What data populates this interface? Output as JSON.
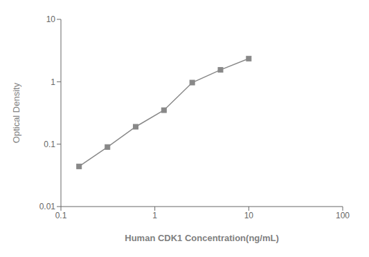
{
  "chart_data": {
    "type": "line",
    "x": [
      0.156,
      0.313,
      0.625,
      1.25,
      2.5,
      5.0,
      10.0
    ],
    "values": [
      0.044,
      0.09,
      0.19,
      0.35,
      0.97,
      1.55,
      2.35
    ],
    "xlabel": "Human CDK1 Concentration(ng/mL)",
    "ylabel": "Optical Density",
    "xlim": [
      0.1,
      100
    ],
    "ylim": [
      0.01,
      10
    ],
    "xticks": [
      0.1,
      1,
      10,
      100
    ],
    "yticks": [
      0.01,
      0.1,
      1,
      10
    ],
    "log": true,
    "grid": false,
    "color": "#888888",
    "marker": "square"
  }
}
